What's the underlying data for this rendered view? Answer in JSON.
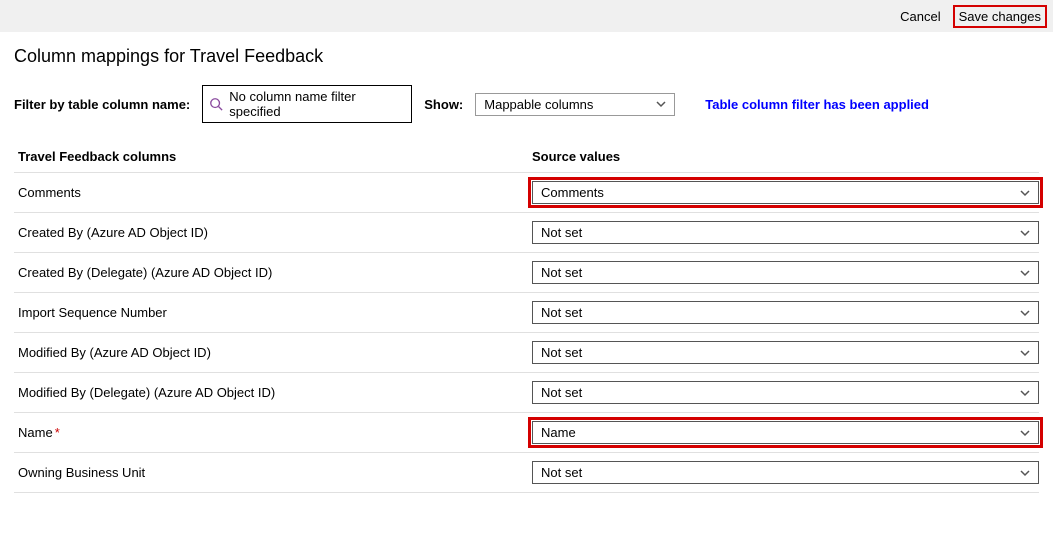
{
  "topbar": {
    "cancel_label": "Cancel",
    "save_label": "Save changes"
  },
  "page_title": "Column mappings for Travel Feedback",
  "filter": {
    "label": "Filter by table column name:",
    "placeholder": "No column name filter specified"
  },
  "show": {
    "label": "Show:",
    "selected": "Mappable columns"
  },
  "status_message": "Table column filter has been applied",
  "headers": {
    "left": "Travel Feedback columns",
    "right": "Source values"
  },
  "mappings": [
    {
      "column": "Comments",
      "source": "Comments",
      "required": false,
      "highlighted": true
    },
    {
      "column": "Created By (Azure AD Object ID)",
      "source": "Not set",
      "required": false,
      "highlighted": false
    },
    {
      "column": "Created By (Delegate) (Azure AD Object ID)",
      "source": "Not set",
      "required": false,
      "highlighted": false
    },
    {
      "column": "Import Sequence Number",
      "source": "Not set",
      "required": false,
      "highlighted": false
    },
    {
      "column": "Modified By (Azure AD Object ID)",
      "source": "Not set",
      "required": false,
      "highlighted": false
    },
    {
      "column": "Modified By (Delegate) (Azure AD Object ID)",
      "source": "Not set",
      "required": false,
      "highlighted": false
    },
    {
      "column": "Name",
      "source": "Name",
      "required": true,
      "highlighted": true
    },
    {
      "column": "Owning Business Unit",
      "source": "Not set",
      "required": false,
      "highlighted": false
    }
  ],
  "colors": {
    "highlight_border": "#d40000",
    "status_text": "#0000ff",
    "required_mark": "#c00",
    "topbar_bg": "#f0f0f0",
    "row_border": "#e0e0e0"
  }
}
